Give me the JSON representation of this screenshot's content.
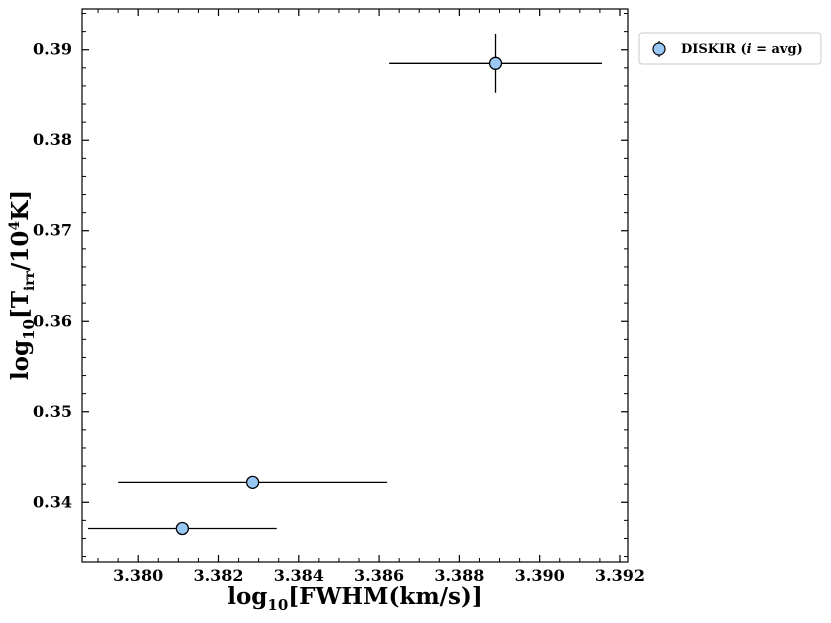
{
  "chart_data": {
    "type": "scatter",
    "x_label": {
      "base": "log",
      "sub": "10",
      "text": "[FWHM(km/s)]"
    },
    "y_label": {
      "base": "log",
      "sub": "10",
      "open": "[T",
      "sub2": "irr",
      "mid": "/10",
      "sup": "4",
      "close": "K]"
    },
    "xlim": [
      3.3786,
      3.3922
    ],
    "ylim": [
      0.3334,
      0.3945
    ],
    "xticks": [
      "3.380",
      "3.382",
      "3.384",
      "3.386",
      "3.388",
      "3.390",
      "3.392"
    ],
    "yticks": [
      "0.34",
      "0.35",
      "0.36",
      "0.37",
      "0.38",
      "0.39"
    ],
    "grid": false,
    "legend": {
      "position": "outside-top-right",
      "label_pre": "DISKIR (",
      "label_italic": "i",
      "label_post": " = avg)"
    },
    "series": [
      {
        "name": "DISKIR (i = avg)",
        "marker": "circle",
        "color": "#99c8f5",
        "edge_color": "#000000",
        "points": [
          {
            "x": 3.3889,
            "y": 0.3885,
            "xerr": 0.00265,
            "yerr": 0.00325
          },
          {
            "x": 3.38285,
            "y": 0.3422,
            "xerr": 0.00335,
            "yerr": 0.0
          },
          {
            "x": 3.3811,
            "y": 0.3371,
            "xerr": 0.00235,
            "yerr": 0.0
          }
        ]
      }
    ]
  },
  "colors": {
    "marker_fill": "#99c8f5",
    "marker_edge": "#000000",
    "axes": "#000000"
  }
}
